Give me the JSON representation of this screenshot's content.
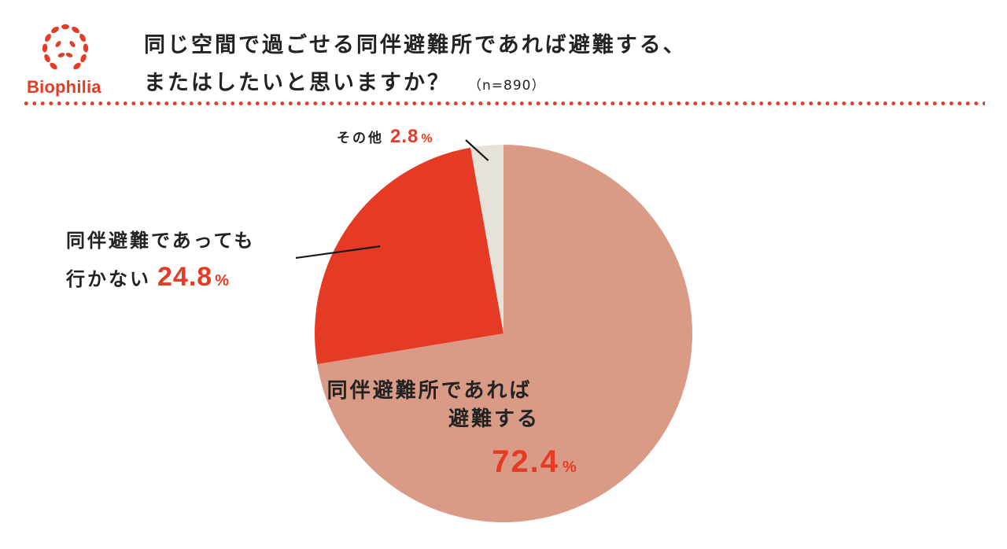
{
  "brand": {
    "name": "Biophilia",
    "color": "#e53a24"
  },
  "title": {
    "line1": "同じ空間で過ごせる同伴避難所であれば避難する、",
    "line2": "またはしたいと思いますか？",
    "sample": "（n=890）"
  },
  "colors": {
    "accent": "#e53a24",
    "dots": "#e53a24",
    "label_line": "#1a1a1a"
  },
  "chart_data": {
    "type": "pie",
    "start": "12 o'clock, clockwise",
    "slices": [
      {
        "label_lines": [
          "同伴避難所であれば",
          "避難する"
        ],
        "value": 72.4,
        "value_text": "72.4",
        "unit": "%",
        "color": "#d99a86",
        "label_position": "inside"
      },
      {
        "label_lines": [
          "同伴避難であっても",
          "行かない"
        ],
        "value": 24.8,
        "value_text": "24.8",
        "unit": "%",
        "color": "#e53a24",
        "label_position": "outside-left"
      },
      {
        "label_lines": [
          "その他"
        ],
        "value": 2.8,
        "value_text": "2.8",
        "unit": "%",
        "color": "#e6e2da",
        "label_position": "outside-top"
      }
    ]
  }
}
